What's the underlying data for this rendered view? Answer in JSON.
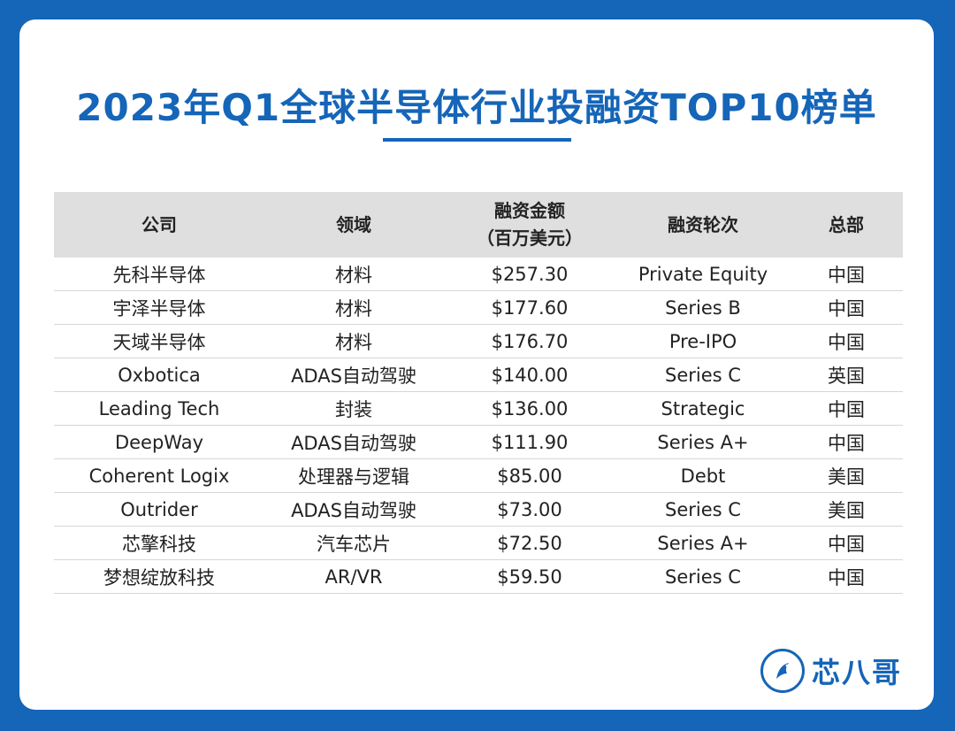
{
  "title": "2023年Q1全球半导体行业投融资TOP10榜单",
  "table": {
    "headers": {
      "company": "公司",
      "field": "领域",
      "amount_line1": "融资金额",
      "amount_line2": "（百万美元）",
      "round": "融资轮次",
      "hq": "总部"
    },
    "rows": [
      {
        "company": "先科半导体",
        "field": "材料",
        "amount": "$257.30",
        "round": "Private Equity",
        "hq": "中国"
      },
      {
        "company": "宇泽半导体",
        "field": "材料",
        "amount": "$177.60",
        "round": "Series B",
        "hq": "中国"
      },
      {
        "company": "天域半导体",
        "field": "材料",
        "amount": "$176.70",
        "round": "Pre-IPO",
        "hq": "中国"
      },
      {
        "company": "Oxbotica",
        "field": "ADAS自动驾驶",
        "amount": "$140.00",
        "round": "Series C",
        "hq": "英国"
      },
      {
        "company": "Leading Tech",
        "field": "封装",
        "amount": "$136.00",
        "round": "Strategic",
        "hq": "中国"
      },
      {
        "company": "DeepWay",
        "field": "ADAS自动驾驶",
        "amount": "$111.90",
        "round": "Series A+",
        "hq": "中国"
      },
      {
        "company": "Coherent Logix",
        "field": "处理器与逻辑",
        "amount": "$85.00",
        "round": "Debt",
        "hq": "美国"
      },
      {
        "company": "Outrider",
        "field": "ADAS自动驾驶",
        "amount": "$73.00",
        "round": "Series C",
        "hq": "美国"
      },
      {
        "company": "芯擎科技",
        "field": "汽车芯片",
        "amount": "$72.50",
        "round": "Series A+",
        "hq": "中国"
      },
      {
        "company": "梦想绽放科技",
        "field": "AR/VR",
        "amount": "$59.50",
        "round": "Series C",
        "hq": "中国"
      }
    ]
  },
  "logo": {
    "text": "芯八哥",
    "icon": "bird-icon"
  },
  "colors": {
    "brand": "#1565b8",
    "header_bg": "#dfdfdf"
  }
}
